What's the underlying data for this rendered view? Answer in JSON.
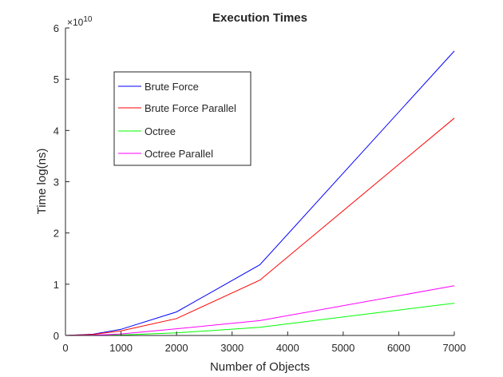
{
  "chart_data": {
    "type": "line",
    "title": "Execution Times",
    "xlabel": "Number of Objects",
    "ylabel": "Time log(ns)",
    "xlim": [
      0,
      7000
    ],
    "ylim": [
      0,
      60000000000
    ],
    "x_ticks": [
      0,
      1000,
      2000,
      3000,
      4000,
      5000,
      6000,
      7000
    ],
    "x_tick_labels": [
      "0",
      "1000",
      "2000",
      "3000",
      "4000",
      "5000",
      "6000",
      "7000"
    ],
    "y_ticks": [
      0,
      10000000000,
      20000000000,
      30000000000,
      40000000000,
      50000000000,
      60000000000
    ],
    "y_tick_labels": [
      "0",
      "1",
      "2",
      "3",
      "4",
      "5",
      "6"
    ],
    "y_exponent_base": "×10",
    "y_exponent_power": "10",
    "grid": false,
    "legend_position": "upper-left",
    "x": [
      0,
      500,
      1000,
      2000,
      3500,
      7000
    ],
    "series": [
      {
        "name": "Brute Force",
        "color": "#0000ff",
        "values": [
          0,
          250000000,
          1200000000,
          4600000000,
          13800000000,
          55500000000
        ]
      },
      {
        "name": "Brute Force Parallel",
        "color": "#ff0000",
        "values": [
          0,
          200000000,
          900000000,
          3300000000,
          10800000000,
          42400000000
        ]
      },
      {
        "name": "Octree",
        "color": "#00ff00",
        "values": [
          0,
          20000000,
          100000000,
          500000000,
          1600000000,
          6300000000
        ]
      },
      {
        "name": "Octree Parallel",
        "color": "#ff00ff",
        "values": [
          0,
          50000000,
          300000000,
          1300000000,
          2900000000,
          9700000000
        ]
      }
    ]
  }
}
